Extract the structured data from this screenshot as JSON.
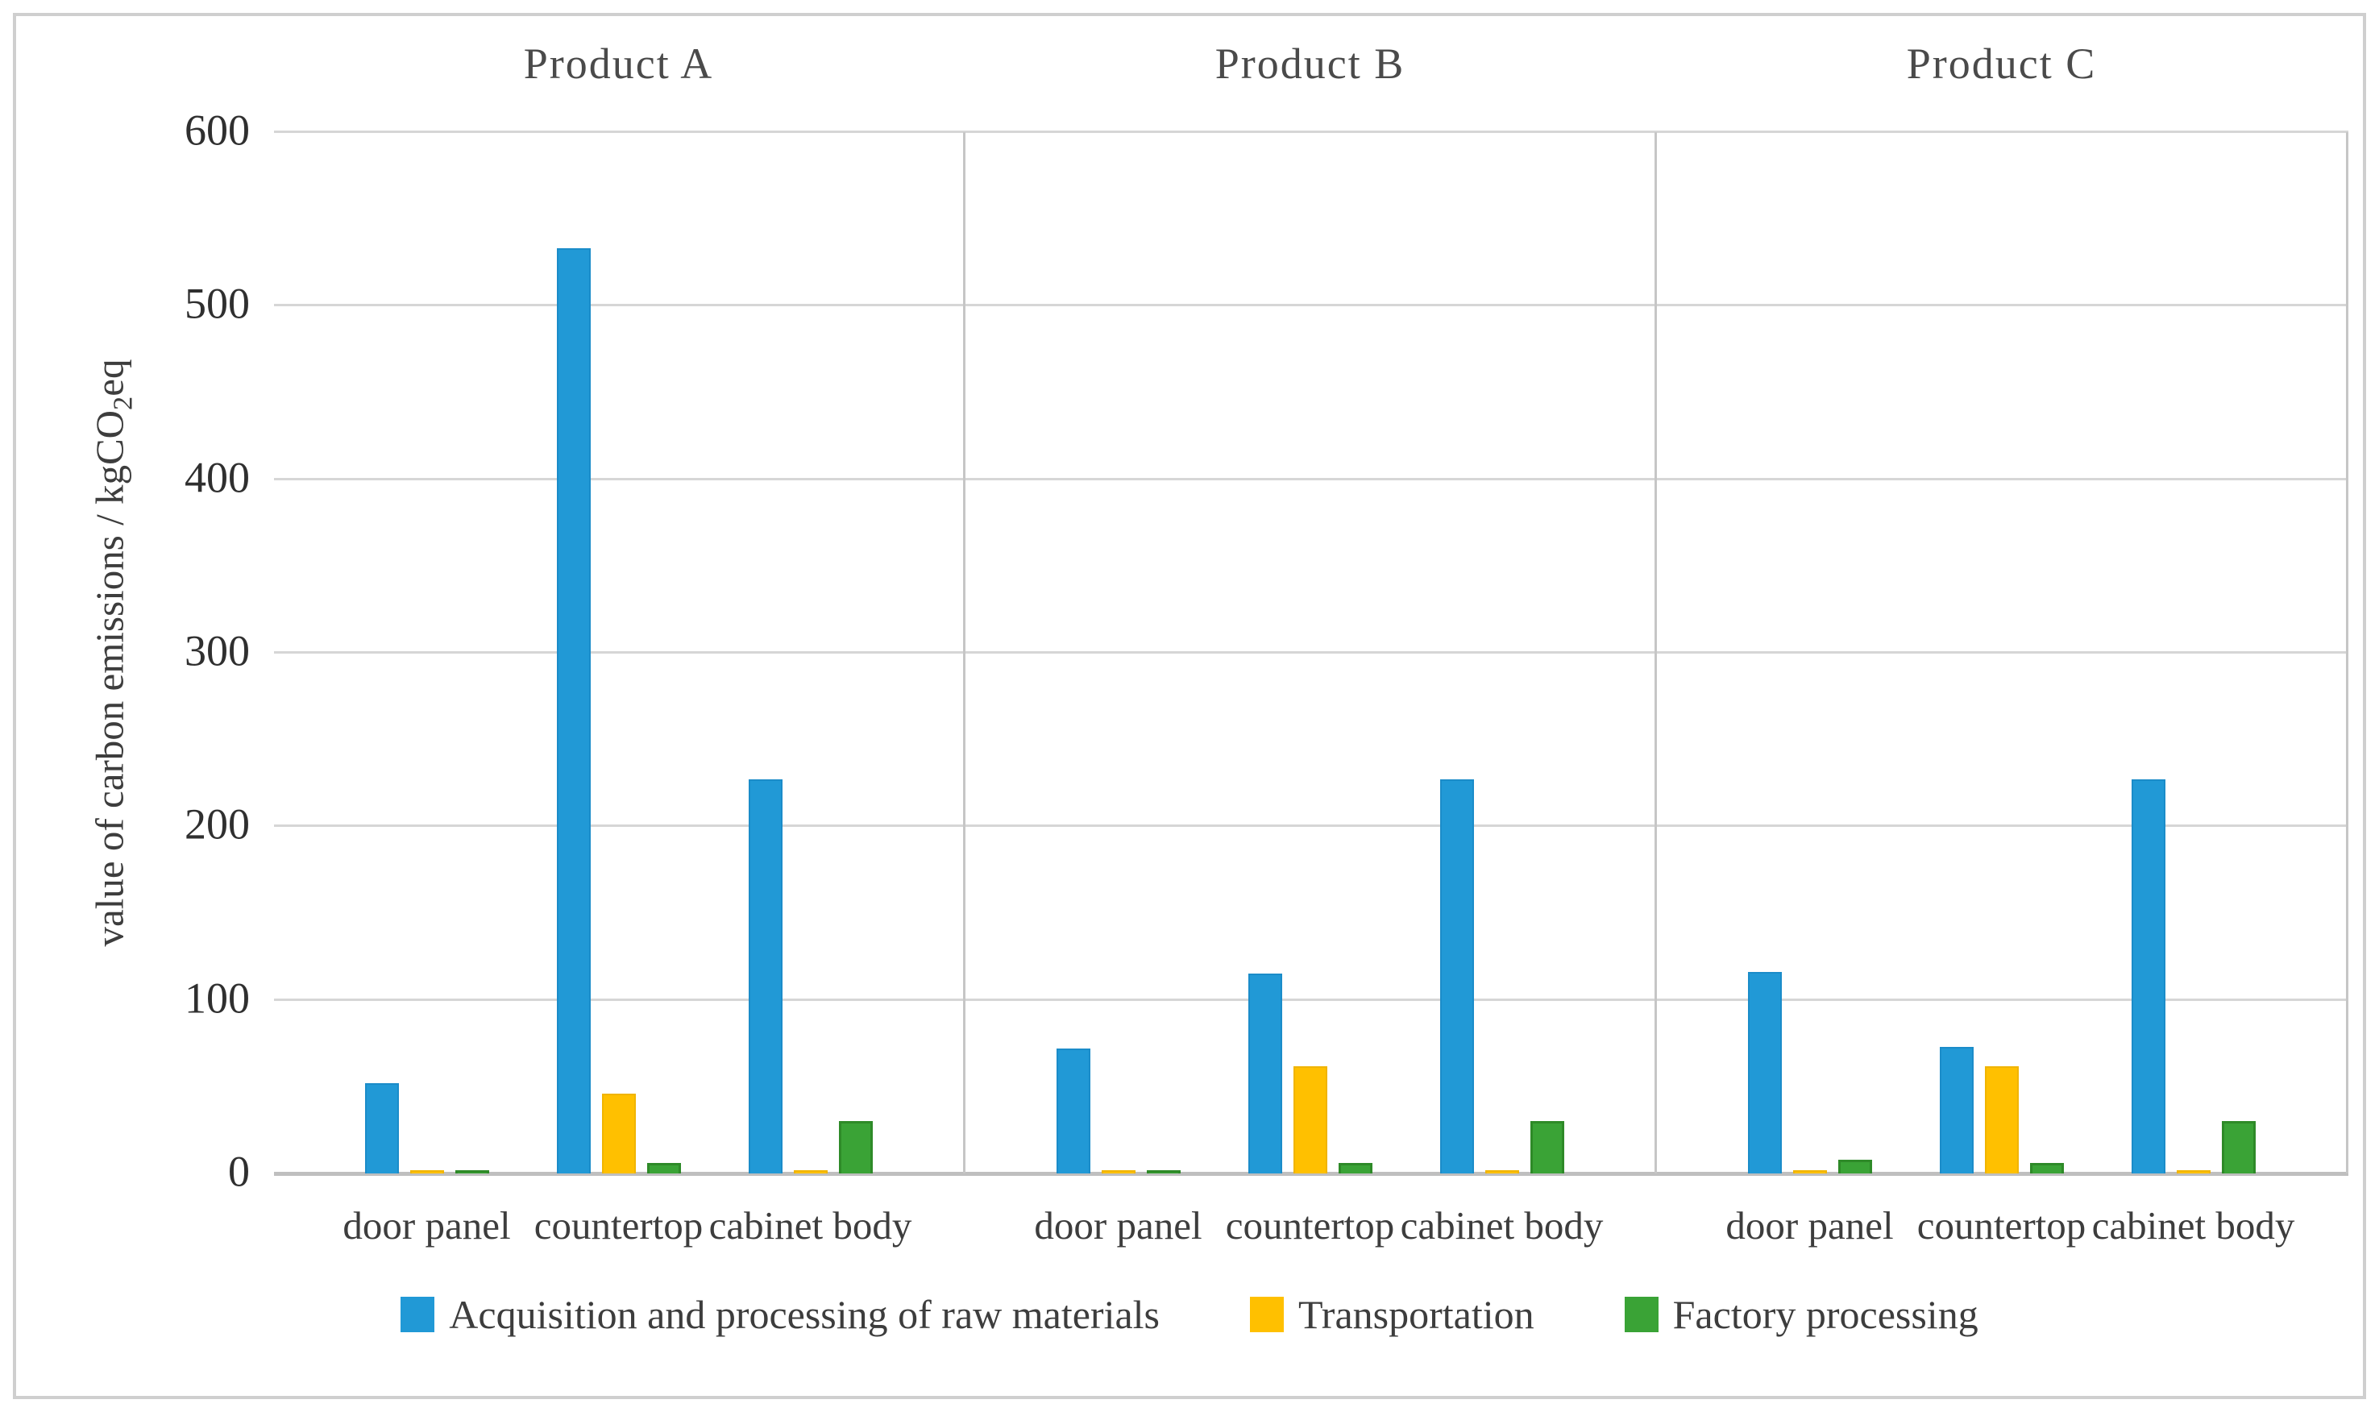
{
  "figure": {
    "background": "#ffffff",
    "border_color": "#cfcfcf"
  },
  "colors": {
    "gridline": "#d6d6d6",
    "axis_line": "#bfbfbf",
    "panel_divider": "#c6c6c6",
    "text": "#3d3d3d",
    "series_blue": "#2199d6",
    "series_yellow": "#ffc000",
    "series_green": "#3aa336"
  },
  "chart_data": {
    "type": "bar",
    "title": "",
    "ylabel_prefix": "value of carbon emissions / kgCO",
    "ylabel_sub": "2",
    "ylabel_suffix": "eq",
    "ylim": [
      0,
      600
    ],
    "yticks": [
      600,
      500,
      400,
      300,
      200,
      100,
      0
    ],
    "grid": "horizontal",
    "legend_position": "bottom",
    "panels": [
      "Product A",
      "Product B",
      "Product C"
    ],
    "categories": [
      "door panel",
      "countertop",
      "cabinet body"
    ],
    "series": [
      {
        "name": "Acquisition and processing of raw materials",
        "color": "#2199d6",
        "values": [
          [
            52,
            533,
            227
          ],
          [
            72,
            115,
            227
          ],
          [
            116,
            73,
            227
          ]
        ]
      },
      {
        "name": "Transportation",
        "color": "#ffc000",
        "values": [
          [
            2,
            46,
            2
          ],
          [
            2,
            62,
            2
          ],
          [
            2,
            62,
            2
          ]
        ]
      },
      {
        "name": "Factory processing",
        "color": "#3aa336",
        "values": [
          [
            2,
            6,
            30
          ],
          [
            2,
            6,
            30
          ],
          [
            8,
            6,
            30
          ]
        ]
      }
    ]
  }
}
